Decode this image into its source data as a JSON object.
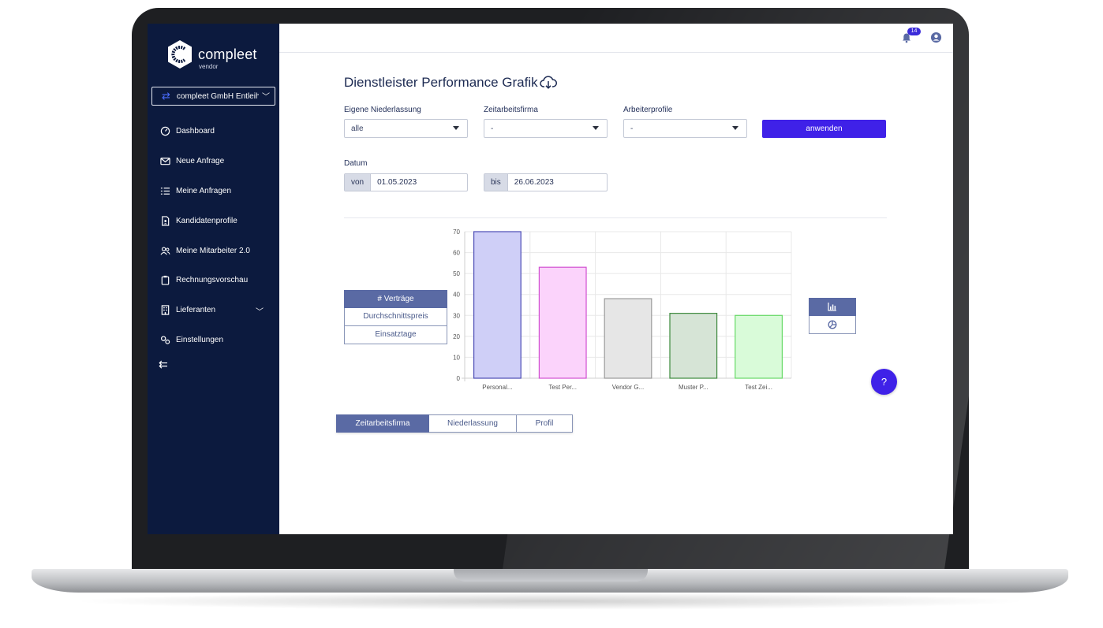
{
  "brand": {
    "name": "compleet",
    "sub": "vendor"
  },
  "company_switch": {
    "label": "compleet GmbH Entleih"
  },
  "sidebar": {
    "items": [
      {
        "label": "Dashboard",
        "icon": "dashboard-gauge-icon"
      },
      {
        "label": "Neue Anfrage",
        "icon": "envelope-icon"
      },
      {
        "label": "Meine Anfragen",
        "icon": "list-icon"
      },
      {
        "label": "Kandidatenprofile",
        "icon": "profile-document-icon"
      },
      {
        "label": "Meine Mitarbeiter 2.0",
        "icon": "users-icon"
      },
      {
        "label": "Rechnungsvorschau",
        "icon": "clipboard-icon"
      },
      {
        "label": "Lieferanten",
        "icon": "building-icon",
        "has_submenu": true
      },
      {
        "label": "Einstellungen",
        "icon": "settings-gears-icon"
      }
    ],
    "collapse_icon": "collapse-arrow-icon"
  },
  "topbar": {
    "notification_count": "14"
  },
  "page": {
    "title": "Dienstleister Performance Grafik"
  },
  "filters": {
    "niederlassung": {
      "label": "Eigene Niederlassung",
      "value": "alle"
    },
    "zeitarbeitsfirma": {
      "label": "Zeitarbeitsfirma",
      "value": "-"
    },
    "arbeiterprofile": {
      "label": "Arbeiterprofile",
      "value": "-"
    },
    "apply_label": "anwenden",
    "datum": {
      "label": "Datum",
      "from_prefix": "von",
      "from_value": "01.05.2023",
      "to_prefix": "bis",
      "to_value": "26.06.2023"
    }
  },
  "metric_tabs": [
    {
      "label": "# Verträge",
      "active": true
    },
    {
      "label": "Durchschnittspreis",
      "active": false
    },
    {
      "label": "Einsatztage",
      "active": false
    }
  ],
  "view_toggle": [
    {
      "icon": "bar-chart-icon",
      "active": true
    },
    {
      "icon": "pie-chart-icon",
      "active": false
    }
  ],
  "group_tabs": [
    {
      "label": "Zeitarbeitsfirma",
      "active": true
    },
    {
      "label": "Niederlassung",
      "active": false
    },
    {
      "label": "Profil",
      "active": false
    }
  ],
  "help_label": "?",
  "chart_data": {
    "type": "bar",
    "categories": [
      "Personal...",
      "Test Per...",
      "Vendor G...",
      "Muster P...",
      "Test Zei..."
    ],
    "values": [
      70,
      53,
      38,
      31,
      30
    ],
    "ylim": [
      0,
      70
    ],
    "yticks": [
      0,
      10,
      20,
      30,
      40,
      50,
      60,
      70
    ],
    "grid": true,
    "colors": [
      {
        "fill": "#cfcff7",
        "stroke": "#4b4bb5"
      },
      {
        "fill": "#fbd3fb",
        "stroke": "#d14fd1"
      },
      {
        "fill": "#e6e6e6",
        "stroke": "#9a9a9a"
      },
      {
        "fill": "#d6e4d6",
        "stroke": "#3d8a3d"
      },
      {
        "fill": "#d9fbd9",
        "stroke": "#66d966"
      }
    ]
  }
}
